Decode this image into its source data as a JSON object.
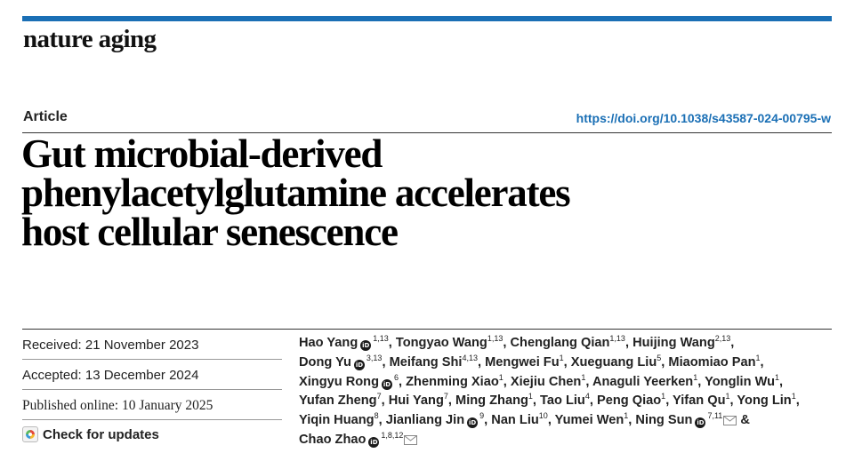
{
  "journal": {
    "name": "nature aging",
    "accent_color": "#1a6fb5"
  },
  "article": {
    "type": "Article",
    "doi": "https://doi.org/10.1038/s43587-024-00795-w",
    "title_lines": [
      "Gut microbial-derived",
      "phenylacetylglutamine accelerates",
      "host cellular senescence"
    ]
  },
  "history": {
    "received": "Received: 21 November 2023",
    "accepted": "Accepted: 13 December 2024",
    "published": "Published online: 10 January 2025",
    "check_updates": "Check for updates"
  },
  "authors": [
    {
      "name": "Hao Yang",
      "orcid": true,
      "affil": "1,13",
      "sep": ","
    },
    {
      "name": "Tongyao Wang",
      "affil": "1,13",
      "sep": ","
    },
    {
      "name": "Chenglang Qian",
      "affil": "1,13",
      "sep": ","
    },
    {
      "name": "Huijing Wang",
      "affil": "2,13",
      "sep": ","
    },
    {
      "name": "Dong Yu",
      "orcid": true,
      "affil": "3,13",
      "sep": ","
    },
    {
      "name": "Meifang Shi",
      "affil": "4,13",
      "sep": ","
    },
    {
      "name": "Mengwei Fu",
      "affil": "1",
      "sep": ","
    },
    {
      "name": "Xueguang Liu",
      "affil": "5",
      "sep": ","
    },
    {
      "name": "Miaomiao Pan",
      "affil": "1",
      "sep": ","
    },
    {
      "name": "Xingyu Rong",
      "orcid": true,
      "affil": "6",
      "sep": ","
    },
    {
      "name": "Zhenming Xiao",
      "affil": "1",
      "sep": ","
    },
    {
      "name": "Xiejiu Chen",
      "affil": "1",
      "sep": ","
    },
    {
      "name": "Anaguli Yeerken",
      "affil": "1",
      "sep": ","
    },
    {
      "name": "Yonglin Wu",
      "affil": "1",
      "sep": ","
    },
    {
      "name": "Yufan Zheng",
      "affil": "7",
      "sep": ","
    },
    {
      "name": "Hui Yang",
      "affil": "7",
      "sep": ","
    },
    {
      "name": "Ming Zhang",
      "affil": "1",
      "sep": ","
    },
    {
      "name": "Tao Liu",
      "affil": "4",
      "sep": ","
    },
    {
      "name": "Peng Qiao",
      "affil": "1",
      "sep": ","
    },
    {
      "name": "Yifan Qu",
      "affil": "1",
      "sep": ","
    },
    {
      "name": "Yong Lin",
      "affil": "1",
      "sep": ","
    },
    {
      "name": "Yiqin Huang",
      "affil": "8",
      "sep": ","
    },
    {
      "name": "Jianliang Jin",
      "orcid": true,
      "affil": "9",
      "sep": ","
    },
    {
      "name": "Nan Liu",
      "affil": "10",
      "sep": ","
    },
    {
      "name": "Yumei Wen",
      "affil": "1",
      "sep": ","
    },
    {
      "name": "Ning Sun",
      "orcid": true,
      "affil": "7,11",
      "mail": true,
      "sep": " &"
    },
    {
      "name": "Chao Zhao",
      "orcid": true,
      "affil": "1,8,12",
      "mail": true,
      "sep": ""
    }
  ],
  "author_line_breaks": [
    4,
    9,
    14,
    21,
    26
  ]
}
